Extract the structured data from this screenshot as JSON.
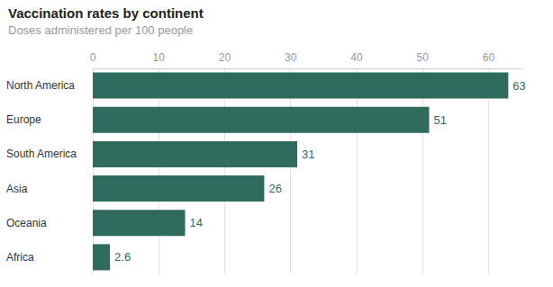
{
  "chart_data": {
    "type": "bar",
    "orientation": "horizontal",
    "title": "Vaccination rates by continent",
    "subtitle": "Doses administered per 100 people",
    "categories": [
      "North America",
      "Europe",
      "South America",
      "Asia",
      "Oceania",
      "Africa"
    ],
    "values": [
      63,
      51,
      31,
      26,
      14,
      2.6
    ],
    "color": "#2e6b5d",
    "xlim": [
      0,
      65
    ],
    "xticks": [
      0,
      10,
      20,
      30,
      40,
      50,
      60
    ],
    "grid": true,
    "data_labels": true
  }
}
